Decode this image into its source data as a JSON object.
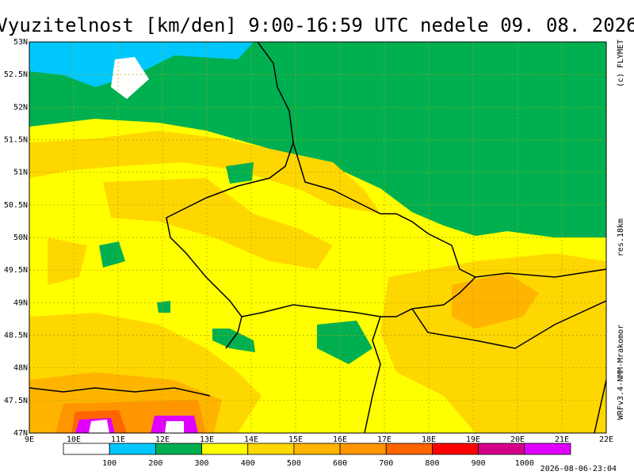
{
  "header": {
    "title": "Vyuzitelnost [km/den] 9:00-16:59 UTC  nedele 09. 08. 2026"
  },
  "side": {
    "copyright": "(c) FLYMET",
    "resolution": "res.18km",
    "model": "WRFv3.4-NMM-Mrakomor"
  },
  "latitudes": [
    "53N",
    "52.5N",
    "52N",
    "51.5N",
    "51N",
    "50.5N",
    "50N",
    "49.5N",
    "49N",
    "48.5N",
    "48N",
    "47.5N",
    "47N"
  ],
  "longitudes": [
    "9E",
    "10E",
    "11E",
    "12E",
    "13E",
    "14E",
    "15E",
    "16E",
    "17E",
    "18E",
    "19E",
    "20E",
    "21E",
    "22E"
  ],
  "legend": {
    "labels": [
      "100",
      "200",
      "300",
      "400",
      "500",
      "600",
      "700",
      "800",
      "900",
      "1000"
    ]
  },
  "footer": {
    "timestamp": "2026-08-06-23:04"
  }
}
